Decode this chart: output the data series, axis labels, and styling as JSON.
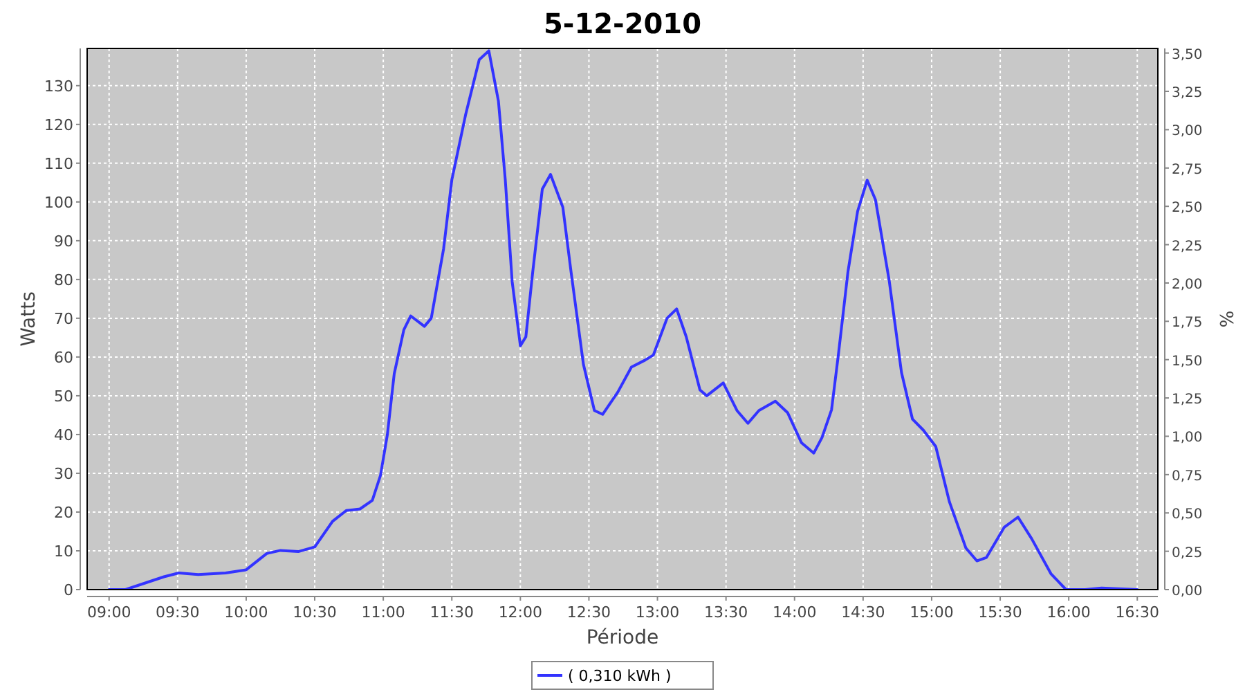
{
  "chart_data": {
    "type": "line",
    "title": "5-12-2010",
    "xlabel": "Période",
    "ylabel": "Watts",
    "y2label": "%",
    "xlim": [
      8.84,
      16.65
    ],
    "ylim": [
      0,
      139.6
    ],
    "y2lim": [
      0,
      3.53
    ],
    "xticks": [
      {
        "value": 9,
        "label": "09:00"
      },
      {
        "value": 9.5,
        "label": "09:30"
      },
      {
        "value": 10,
        "label": "10:00"
      },
      {
        "value": 10.5,
        "label": "10:30"
      },
      {
        "value": 11,
        "label": "11:00"
      },
      {
        "value": 11.5,
        "label": "11:30"
      },
      {
        "value": 12,
        "label": "12:00"
      },
      {
        "value": 12.5,
        "label": "12:30"
      },
      {
        "value": 13,
        "label": "13:00"
      },
      {
        "value": 13.5,
        "label": "13:30"
      },
      {
        "value": 14,
        "label": "14:00"
      },
      {
        "value": 14.5,
        "label": "14:30"
      },
      {
        "value": 15,
        "label": "15:00"
      },
      {
        "value": 15.5,
        "label": "15:30"
      },
      {
        "value": 16,
        "label": "16:00"
      },
      {
        "value": 16.5,
        "label": "16:30"
      }
    ],
    "yticks": [
      0,
      10,
      20,
      30,
      40,
      50,
      60,
      70,
      80,
      90,
      100,
      110,
      120,
      130
    ],
    "y2ticks": [
      {
        "value": 0,
        "label": "0,00"
      },
      {
        "value": 0.25,
        "label": "0,25"
      },
      {
        "value": 0.5,
        "label": "0,50"
      },
      {
        "value": 0.75,
        "label": "0,75"
      },
      {
        "value": 1,
        "label": "1,00"
      },
      {
        "value": 1.25,
        "label": "1,25"
      },
      {
        "value": 1.5,
        "label": "1,50"
      },
      {
        "value": 1.75,
        "label": "1,75"
      },
      {
        "value": 2,
        "label": "2,00"
      },
      {
        "value": 2.25,
        "label": "2,25"
      },
      {
        "value": 2.5,
        "label": "2,50"
      },
      {
        "value": 2.75,
        "label": "2,75"
      },
      {
        "value": 3,
        "label": "3,00"
      },
      {
        "value": 3.25,
        "label": "3,25"
      },
      {
        "value": 3.5,
        "label": "3,50"
      }
    ],
    "grid": true,
    "legend": "bottom",
    "marker": "none",
    "line_style": "solid",
    "series": [
      {
        "name": "( 0,310 kWh )",
        "color": "#3333ff",
        "x": [
          9,
          9.12,
          9.4,
          9.51,
          9.65,
          9.85,
          10,
          10.15,
          10.25,
          10.38,
          10.5,
          10.63,
          10.73,
          10.83,
          10.92,
          10.98,
          11.03,
          11.08,
          11.15,
          11.2,
          11.3,
          11.35,
          11.44,
          11.5,
          11.6,
          11.7,
          11.77,
          11.84,
          11.89,
          11.94,
          12,
          12.04,
          12.09,
          12.16,
          12.22,
          12.31,
          12.37,
          12.46,
          12.54,
          12.6,
          12.71,
          12.81,
          12.91,
          12.97,
          13.07,
          13.14,
          13.21,
          13.31,
          13.36,
          13.48,
          13.58,
          13.66,
          13.74,
          13.86,
          13.95,
          14.05,
          14.14,
          14.2,
          14.27,
          14.32,
          14.39,
          14.46,
          14.53,
          14.59,
          14.69,
          14.78,
          14.86,
          14.94,
          15.03,
          15.13,
          15.25,
          15.33,
          15.4,
          15.53,
          15.63,
          15.73,
          15.87,
          15.98,
          16.12,
          16.24,
          16.5
        ],
        "values": [
          0,
          0,
          3.3,
          4.3,
          3.9,
          4.3,
          5.1,
          9.3,
          10.1,
          9.8,
          11,
          17.6,
          20.4,
          20.8,
          23,
          29.5,
          40,
          55.7,
          67,
          70.6,
          67.9,
          70,
          87.9,
          105.7,
          122.4,
          136.7,
          139,
          126,
          105.7,
          79.5,
          62.9,
          65.2,
          81.9,
          103.3,
          107.1,
          98.6,
          81.9,
          58.1,
          46.2,
          45.2,
          50.9,
          57.4,
          59.2,
          60.5,
          70,
          72.4,
          65.2,
          51.5,
          50,
          53.3,
          46.2,
          42.9,
          46.2,
          48.6,
          45.6,
          37.9,
          35.2,
          39.2,
          46.4,
          60.7,
          82.1,
          97.6,
          105.6,
          100.6,
          79.8,
          56,
          44,
          41.1,
          36.9,
          22.6,
          10.7,
          7.4,
          8.3,
          16.1,
          18.7,
          13.1,
          4.1,
          0,
          0,
          0.4,
          0
        ]
      }
    ]
  }
}
